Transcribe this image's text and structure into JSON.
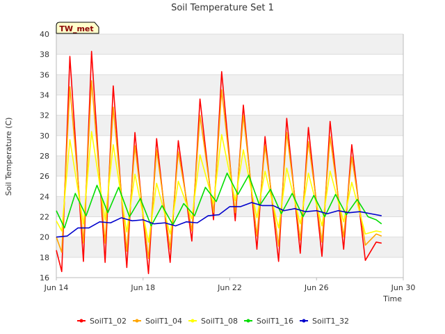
{
  "chart_data": {
    "type": "line",
    "title": "Soil Temperature Set 1",
    "xlabel": "Time",
    "ylabel": "Soil Temperature (C)",
    "site_label": "TW_met",
    "xlim": [
      "2024-06-14",
      "2024-06-30"
    ],
    "ylim": [
      16,
      40
    ],
    "x_ticks": [
      {
        "label": "Jun 14",
        "date": "2024-06-14"
      },
      {
        "label": "Jun 18",
        "date": "2024-06-18"
      },
      {
        "label": "Jun 22",
        "date": "2024-06-22"
      },
      {
        "label": "Jun 26",
        "date": "2024-06-26"
      },
      {
        "label": "Jun 30",
        "date": "2024-06-30"
      }
    ],
    "y_ticks": [
      16,
      18,
      20,
      22,
      24,
      26,
      28,
      30,
      32,
      34,
      36,
      38,
      40
    ],
    "grid": true,
    "legend_position": "bottom",
    "x": [
      "2024-06-14T00:00",
      "2024-06-14T06:00",
      "2024-06-14T15:00",
      "2024-06-15T06:00",
      "2024-06-15T15:00",
      "2024-06-16T06:00",
      "2024-06-16T15:00",
      "2024-06-17T06:00",
      "2024-06-17T15:00",
      "2024-06-18T06:00",
      "2024-06-18T15:00",
      "2024-06-19T06:00",
      "2024-06-19T15:00",
      "2024-06-20T06:00",
      "2024-06-20T15:00",
      "2024-06-21T06:00",
      "2024-06-21T15:00",
      "2024-06-22T06:00",
      "2024-06-22T15:00",
      "2024-06-23T06:00",
      "2024-06-23T15:00",
      "2024-06-24T06:00",
      "2024-06-24T15:00",
      "2024-06-25T06:00",
      "2024-06-25T15:00",
      "2024-06-26T06:00",
      "2024-06-26T15:00",
      "2024-06-27T06:00",
      "2024-06-27T15:00",
      "2024-06-28T06:00",
      "2024-06-28T15:00",
      "2024-06-29T06:00",
      "2024-06-29T00:00"
    ],
    "series": [
      {
        "name": "SoilT1_02",
        "color": "#ff0000",
        "points": [
          [
            "2024-06-14T00:00",
            18.7
          ],
          [
            "2024-06-14T06:00",
            16.6
          ],
          [
            "2024-06-14T15:00",
            37.8
          ],
          [
            "2024-06-15T06:00",
            17.6
          ],
          [
            "2024-06-15T15:00",
            38.3
          ],
          [
            "2024-06-16T06:00",
            17.5
          ],
          [
            "2024-06-16T15:00",
            34.9
          ],
          [
            "2024-06-17T06:00",
            17.0
          ],
          [
            "2024-06-17T15:00",
            30.3
          ],
          [
            "2024-06-18T06:00",
            16.4
          ],
          [
            "2024-06-18T15:00",
            29.7
          ],
          [
            "2024-06-19T06:00",
            17.5
          ],
          [
            "2024-06-19T15:00",
            29.5
          ],
          [
            "2024-06-20T06:00",
            19.6
          ],
          [
            "2024-06-20T15:00",
            33.6
          ],
          [
            "2024-06-21T06:00",
            21.7
          ],
          [
            "2024-06-21T15:00",
            36.3
          ],
          [
            "2024-06-22T06:00",
            21.6
          ],
          [
            "2024-06-22T15:00",
            33.0
          ],
          [
            "2024-06-23T06:00",
            18.8
          ],
          [
            "2024-06-23T15:00",
            29.9
          ],
          [
            "2024-06-24T06:00",
            17.6
          ],
          [
            "2024-06-24T15:00",
            31.7
          ],
          [
            "2024-06-25T06:00",
            18.4
          ],
          [
            "2024-06-25T15:00",
            30.8
          ],
          [
            "2024-06-26T06:00",
            18.1
          ],
          [
            "2024-06-26T15:00",
            31.4
          ],
          [
            "2024-06-27T06:00",
            18.8
          ],
          [
            "2024-06-27T15:00",
            29.1
          ],
          [
            "2024-06-28T06:00",
            17.7
          ],
          [
            "2024-06-28T18:00",
            19.5
          ],
          [
            "2024-06-29T00:00",
            19.4
          ]
        ]
      },
      {
        "name": "SoilT1_04",
        "color": "#ffa500",
        "points": [
          [
            "2024-06-14T00:00",
            20.0
          ],
          [
            "2024-06-14T06:00",
            18.5
          ],
          [
            "2024-06-14T15:00",
            34.8
          ],
          [
            "2024-06-15T06:00",
            19.4
          ],
          [
            "2024-06-15T15:00",
            35.4
          ],
          [
            "2024-06-16T06:00",
            19.4
          ],
          [
            "2024-06-16T15:00",
            32.8
          ],
          [
            "2024-06-17T06:00",
            18.6
          ],
          [
            "2024-06-17T15:00",
            29.0
          ],
          [
            "2024-06-18T06:00",
            17.9
          ],
          [
            "2024-06-18T15:00",
            28.6
          ],
          [
            "2024-06-19T06:00",
            18.8
          ],
          [
            "2024-06-19T15:00",
            28.4
          ],
          [
            "2024-06-20T06:00",
            20.6
          ],
          [
            "2024-06-20T15:00",
            32.0
          ],
          [
            "2024-06-21T06:00",
            22.4
          ],
          [
            "2024-06-21T15:00",
            34.5
          ],
          [
            "2024-06-22T06:00",
            22.4
          ],
          [
            "2024-06-22T15:00",
            32.0
          ],
          [
            "2024-06-23T06:00",
            20.1
          ],
          [
            "2024-06-23T15:00",
            29.0
          ],
          [
            "2024-06-24T06:00",
            19.1
          ],
          [
            "2024-06-24T15:00",
            30.3
          ],
          [
            "2024-06-25T06:00",
            19.7
          ],
          [
            "2024-06-25T15:00",
            29.4
          ],
          [
            "2024-06-26T06:00",
            19.5
          ],
          [
            "2024-06-26T15:00",
            29.9
          ],
          [
            "2024-06-27T06:00",
            20.0
          ],
          [
            "2024-06-27T15:00",
            27.9
          ],
          [
            "2024-06-28T06:00",
            19.2
          ],
          [
            "2024-06-28T18:00",
            20.3
          ],
          [
            "2024-06-29T00:00",
            20.1
          ]
        ]
      },
      {
        "name": "SoilT1_08",
        "color": "#ffff00",
        "points": [
          [
            "2024-06-14T00:00",
            21.6
          ],
          [
            "2024-06-14T06:00",
            20.6
          ],
          [
            "2024-06-14T15:00",
            29.6
          ],
          [
            "2024-06-15T06:00",
            21.3
          ],
          [
            "2024-06-15T15:00",
            30.4
          ],
          [
            "2024-06-16T06:00",
            21.7
          ],
          [
            "2024-06-16T15:00",
            29.1
          ],
          [
            "2024-06-17T06:00",
            20.5
          ],
          [
            "2024-06-17T15:00",
            26.2
          ],
          [
            "2024-06-18T06:00",
            19.5
          ],
          [
            "2024-06-18T15:00",
            25.3
          ],
          [
            "2024-06-19T06:00",
            20.3
          ],
          [
            "2024-06-19T15:00",
            25.5
          ],
          [
            "2024-06-20T06:00",
            21.8
          ],
          [
            "2024-06-20T15:00",
            28.1
          ],
          [
            "2024-06-21T06:00",
            23.3
          ],
          [
            "2024-06-21T15:00",
            30.1
          ],
          [
            "2024-06-22T06:00",
            23.6
          ],
          [
            "2024-06-22T15:00",
            28.6
          ],
          [
            "2024-06-23T06:00",
            21.9
          ],
          [
            "2024-06-23T15:00",
            26.5
          ],
          [
            "2024-06-24T06:00",
            20.9
          ],
          [
            "2024-06-24T15:00",
            26.8
          ],
          [
            "2024-06-25T06:00",
            21.3
          ],
          [
            "2024-06-25T15:00",
            26.3
          ],
          [
            "2024-06-26T06:00",
            21.1
          ],
          [
            "2024-06-26T15:00",
            26.5
          ],
          [
            "2024-06-27T06:00",
            21.5
          ],
          [
            "2024-06-27T15:00",
            25.4
          ],
          [
            "2024-06-28T06:00",
            20.3
          ],
          [
            "2024-06-28T18:00",
            20.6
          ],
          [
            "2024-06-29T00:00",
            20.5
          ]
        ]
      },
      {
        "name": "SoilT1_16",
        "color": "#00dd00",
        "points": [
          [
            "2024-06-14T00:00",
            22.6
          ],
          [
            "2024-06-14T09:00",
            20.9
          ],
          [
            "2024-06-14T21:00",
            24.3
          ],
          [
            "2024-06-15T09:00",
            22.1
          ],
          [
            "2024-06-15T21:00",
            25.1
          ],
          [
            "2024-06-16T09:00",
            22.4
          ],
          [
            "2024-06-16T21:00",
            24.9
          ],
          [
            "2024-06-17T09:00",
            22.0
          ],
          [
            "2024-06-17T21:00",
            23.8
          ],
          [
            "2024-06-18T09:00",
            21.1
          ],
          [
            "2024-06-18T21:00",
            23.1
          ],
          [
            "2024-06-19T09:00",
            21.2
          ],
          [
            "2024-06-19T21:00",
            23.3
          ],
          [
            "2024-06-20T09:00",
            22.1
          ],
          [
            "2024-06-20T21:00",
            24.9
          ],
          [
            "2024-06-21T09:00",
            23.5
          ],
          [
            "2024-06-21T21:00",
            26.3
          ],
          [
            "2024-06-22T09:00",
            24.2
          ],
          [
            "2024-06-22T21:00",
            26.1
          ],
          [
            "2024-06-23T09:00",
            23.1
          ],
          [
            "2024-06-23T21:00",
            24.7
          ],
          [
            "2024-06-24T09:00",
            22.3
          ],
          [
            "2024-06-24T21:00",
            24.3
          ],
          [
            "2024-06-25T09:00",
            22.0
          ],
          [
            "2024-06-25T21:00",
            24.1
          ],
          [
            "2024-06-26T09:00",
            22.0
          ],
          [
            "2024-06-26T21:00",
            24.2
          ],
          [
            "2024-06-27T09:00",
            22.2
          ],
          [
            "2024-06-27T21:00",
            23.7
          ],
          [
            "2024-06-28T09:00",
            22.0
          ],
          [
            "2024-06-28T18:00",
            21.7
          ],
          [
            "2024-06-29T00:00",
            21.3
          ]
        ]
      },
      {
        "name": "SoilT1_32",
        "color": "#0000cc",
        "points": [
          [
            "2024-06-14T00:00",
            20.0
          ],
          [
            "2024-06-14T12:00",
            20.1
          ],
          [
            "2024-06-15T00:00",
            20.9
          ],
          [
            "2024-06-15T12:00",
            20.9
          ],
          [
            "2024-06-16T00:00",
            21.5
          ],
          [
            "2024-06-16T12:00",
            21.4
          ],
          [
            "2024-06-17T00:00",
            21.9
          ],
          [
            "2024-06-17T12:00",
            21.6
          ],
          [
            "2024-06-18T00:00",
            21.7
          ],
          [
            "2024-06-18T12:00",
            21.3
          ],
          [
            "2024-06-19T00:00",
            21.4
          ],
          [
            "2024-06-19T12:00",
            21.1
          ],
          [
            "2024-06-20T00:00",
            21.5
          ],
          [
            "2024-06-20T12:00",
            21.4
          ],
          [
            "2024-06-21T00:00",
            22.1
          ],
          [
            "2024-06-21T12:00",
            22.2
          ],
          [
            "2024-06-22T00:00",
            23.0
          ],
          [
            "2024-06-22T12:00",
            23.0
          ],
          [
            "2024-06-23T00:00",
            23.4
          ],
          [
            "2024-06-23T12:00",
            23.1
          ],
          [
            "2024-06-24T00:00",
            23.1
          ],
          [
            "2024-06-24T12:00",
            22.6
          ],
          [
            "2024-06-25T00:00",
            22.8
          ],
          [
            "2024-06-25T12:00",
            22.5
          ],
          [
            "2024-06-26T00:00",
            22.6
          ],
          [
            "2024-06-26T12:00",
            22.3
          ],
          [
            "2024-06-27T00:00",
            22.6
          ],
          [
            "2024-06-27T12:00",
            22.4
          ],
          [
            "2024-06-28T00:00",
            22.5
          ],
          [
            "2024-06-28T12:00",
            22.3
          ],
          [
            "2024-06-29T00:00",
            22.1
          ]
        ]
      }
    ]
  },
  "colors": {
    "band": "#f0f0f0",
    "grid": "#dddddd",
    "axis": "#bbbbbb",
    "badge_fill": "#ffffcc"
  }
}
